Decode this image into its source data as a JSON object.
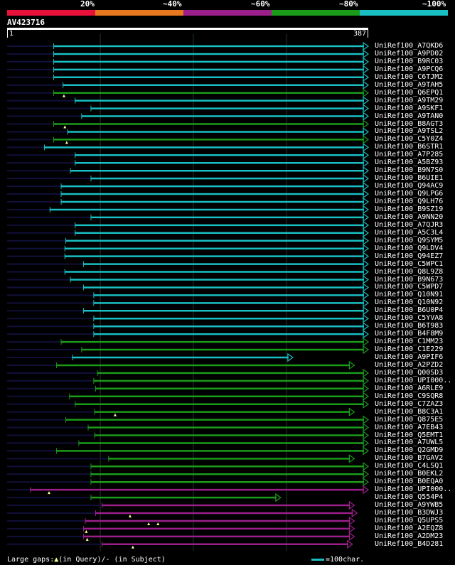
{
  "legend": {
    "segments": [
      {
        "label": "20%",
        "color": "#e8113a"
      },
      {
        "label": "~40%",
        "color": "#e8781e"
      },
      {
        "label": "~60%",
        "color": "#9b1f8a"
      },
      {
        "label": "~80%",
        "color": "#1a9b1a"
      },
      {
        "label": "~100%",
        "color": "#19bfc3"
      }
    ]
  },
  "query": {
    "id": "AV423716",
    "start": "1",
    "end": "387",
    "length": 387
  },
  "colors": {
    "cyan": "#19bfc3",
    "green": "#1a9b1a",
    "purple": "#9b1f8a",
    "tail": "#10103a",
    "grid": "#1f3a1f"
  },
  "hits": [
    {
      "name": "UniRef100_A7QKD6",
      "color": "cyan",
      "qstart": 50,
      "qend": 387,
      "ins": []
    },
    {
      "name": "UniRef100_A9PD02",
      "color": "cyan",
      "qstart": 50,
      "qend": 387,
      "ins": []
    },
    {
      "name": "UniRef100_B9RC03",
      "color": "cyan",
      "qstart": 50,
      "qend": 387,
      "ins": []
    },
    {
      "name": "UniRef100_A9PCQ6",
      "color": "cyan",
      "qstart": 50,
      "qend": 387,
      "ins": []
    },
    {
      "name": "UniRef100_C6TJM2",
      "color": "cyan",
      "qstart": 50,
      "qend": 387,
      "ins": []
    },
    {
      "name": "UniRef100_A9TAH5",
      "color": "cyan",
      "qstart": 60,
      "qend": 387,
      "ins": []
    },
    {
      "name": "UniRef100_Q6EPQ1",
      "color": "green",
      "qstart": 50,
      "qend": 387,
      "ins": [
        61
      ]
    },
    {
      "name": "UniRef100_A9TM29",
      "color": "cyan",
      "qstart": 73,
      "qend": 387,
      "ins": []
    },
    {
      "name": "UniRef100_A9SKF1",
      "color": "cyan",
      "qstart": 90,
      "qend": 387,
      "ins": []
    },
    {
      "name": "UniRef100_A9TAN0",
      "color": "cyan",
      "qstart": 80,
      "qend": 387,
      "ins": []
    },
    {
      "name": "UniRef100_B8AGT3",
      "color": "green",
      "qstart": 50,
      "qend": 387,
      "ins": [
        62
      ]
    },
    {
      "name": "UniRef100_A9TSL2",
      "color": "cyan",
      "qstart": 65,
      "qend": 387,
      "ins": []
    },
    {
      "name": "UniRef100_C5Y0Z4",
      "color": "green",
      "qstart": 50,
      "qend": 387,
      "ins": [
        64
      ]
    },
    {
      "name": "UniRef100_B6STR1",
      "color": "cyan",
      "qstart": 40,
      "qend": 387,
      "ins": []
    },
    {
      "name": "UniRef100_A7P285",
      "color": "cyan",
      "qstart": 73,
      "qend": 387,
      "ins": []
    },
    {
      "name": "UniRef100_A5BZ93",
      "color": "cyan",
      "qstart": 73,
      "qend": 387,
      "ins": []
    },
    {
      "name": "UniRef100_B9N7S0",
      "color": "cyan",
      "qstart": 68,
      "qend": 387,
      "ins": []
    },
    {
      "name": "UniRef100_B6UIE1",
      "color": "cyan",
      "qstart": 90,
      "qend": 387,
      "ins": []
    },
    {
      "name": "UniRef100_Q94AC9",
      "color": "cyan",
      "qstart": 58,
      "qend": 387,
      "ins": []
    },
    {
      "name": "UniRef100_Q9LPG6",
      "color": "cyan",
      "qstart": 58,
      "qend": 387,
      "ins": []
    },
    {
      "name": "UniRef100_Q9LH76",
      "color": "cyan",
      "qstart": 58,
      "qend": 387,
      "ins": []
    },
    {
      "name": "UniRef100_B9SZ19",
      "color": "cyan",
      "qstart": 46,
      "qend": 387,
      "ins": []
    },
    {
      "name": "UniRef100_A9NN20",
      "color": "cyan",
      "qstart": 90,
      "qend": 387,
      "ins": []
    },
    {
      "name": "UniRef100_A7QJR3",
      "color": "cyan",
      "qstart": 73,
      "qend": 387,
      "ins": []
    },
    {
      "name": "UniRef100_A5C3L4",
      "color": "cyan",
      "qstart": 73,
      "qend": 387,
      "ins": []
    },
    {
      "name": "UniRef100_Q9SYM5",
      "color": "cyan",
      "qstart": 63,
      "qend": 387,
      "ins": []
    },
    {
      "name": "UniRef100_Q9LDV4",
      "color": "cyan",
      "qstart": 62,
      "qend": 387,
      "ins": []
    },
    {
      "name": "UniRef100_Q94EZ7",
      "color": "cyan",
      "qstart": 62,
      "qend": 387,
      "ins": []
    },
    {
      "name": "UniRef100_C5WPC1",
      "color": "cyan",
      "qstart": 82,
      "qend": 387,
      "ins": []
    },
    {
      "name": "UniRef100_Q8L9Z8",
      "color": "cyan",
      "qstart": 62,
      "qend": 387,
      "ins": []
    },
    {
      "name": "UniRef100_B9N673",
      "color": "cyan",
      "qstart": 68,
      "qend": 387,
      "ins": []
    },
    {
      "name": "UniRef100_C5WPD7",
      "color": "cyan",
      "qstart": 82,
      "qend": 387,
      "ins": []
    },
    {
      "name": "UniRef100_Q10N91",
      "color": "cyan",
      "qstart": 93,
      "qend": 387,
      "ins": []
    },
    {
      "name": "UniRef100_Q10N92",
      "color": "cyan",
      "qstart": 93,
      "qend": 387,
      "ins": []
    },
    {
      "name": "UniRef100_B6U0P4",
      "color": "cyan",
      "qstart": 82,
      "qend": 387,
      "ins": []
    },
    {
      "name": "UniRef100_C5YVA8",
      "color": "cyan",
      "qstart": 93,
      "qend": 387,
      "ins": []
    },
    {
      "name": "UniRef100_B6T983",
      "color": "cyan",
      "qstart": 93,
      "qend": 387,
      "ins": []
    },
    {
      "name": "UniRef100_B4F8M9",
      "color": "cyan",
      "qstart": 93,
      "qend": 387,
      "ins": []
    },
    {
      "name": "UniRef100_C1MM23",
      "color": "green",
      "qstart": 58,
      "qend": 387,
      "ins": []
    },
    {
      "name": "UniRef100_C1E229",
      "color": "green",
      "qstart": 80,
      "qend": 387,
      "ins": []
    },
    {
      "name": "UniRef100_A9PIF6",
      "color": "cyan",
      "qstart": 70,
      "qend": 306,
      "ins": []
    },
    {
      "name": "UniRef100_A2PZD2",
      "color": "green",
      "qstart": 53,
      "qend": 372,
      "ins": []
    },
    {
      "name": "UniRef100_Q00SD3",
      "color": "green",
      "qstart": 97,
      "qend": 387,
      "ins": []
    },
    {
      "name": "UniRef100_UPI000..",
      "color": "green",
      "qstart": 93,
      "qend": 387,
      "ins": []
    },
    {
      "name": "UniRef100_A6RLE9",
      "color": "green",
      "qstart": 95,
      "qend": 387,
      "ins": []
    },
    {
      "name": "UniRef100_C9SQR8",
      "color": "green",
      "qstart": 67,
      "qend": 387,
      "ins": []
    },
    {
      "name": "UniRef100_C7ZAZ3",
      "color": "green",
      "qstart": 73,
      "qend": 387,
      "ins": []
    },
    {
      "name": "UniRef100_B8C3A1",
      "color": "green",
      "qstart": 94,
      "qend": 372,
      "ins": [
        116
      ]
    },
    {
      "name": "UniRef100_Q875E5",
      "color": "green",
      "qstart": 63,
      "qend": 387,
      "ins": []
    },
    {
      "name": "UniRef100_A7EB43",
      "color": "green",
      "qstart": 87,
      "qend": 387,
      "ins": []
    },
    {
      "name": "UniRef100_Q5EMT1",
      "color": "green",
      "qstart": 94,
      "qend": 387,
      "ins": []
    },
    {
      "name": "UniRef100_A7UWL5",
      "color": "green",
      "qstart": 77,
      "qend": 387,
      "ins": []
    },
    {
      "name": "UniRef100_Q2GMD9",
      "color": "green",
      "qstart": 53,
      "qend": 387,
      "ins": []
    },
    {
      "name": "UniRef100_B7GAV2",
      "color": "green",
      "qstart": 109,
      "qend": 372,
      "ins": []
    },
    {
      "name": "UniRef100_C4LSQ1",
      "color": "green",
      "qstart": 90,
      "qend": 387,
      "ins": []
    },
    {
      "name": "UniRef100_B0EKL2",
      "color": "green",
      "qstart": 90,
      "qend": 387,
      "ins": []
    },
    {
      "name": "UniRef100_B0EQA0",
      "color": "green",
      "qstart": 90,
      "qend": 387,
      "ins": []
    },
    {
      "name": "UniRef100_UPI000..",
      "color": "purple",
      "qstart": 25,
      "qend": 387,
      "ins": [
        45
      ]
    },
    {
      "name": "UniRef100_Q554P4",
      "color": "green",
      "qstart": 90,
      "qend": 293,
      "ins": []
    },
    {
      "name": "UniRef100_A9YWB5",
      "color": "purple",
      "qstart": 102,
      "qend": 372,
      "ins": []
    },
    {
      "name": "UniRef100_B3DWJ3",
      "color": "purple",
      "qstart": 95,
      "qend": 375,
      "ins": [
        132
      ]
    },
    {
      "name": "UniRef100_Q5UPS5",
      "color": "purple",
      "qstart": 84,
      "qend": 372,
      "ins": [
        152,
        162
      ]
    },
    {
      "name": "UniRef100_A2EQZ8",
      "color": "purple",
      "qstart": 82,
      "qend": 372,
      "ins": [
        85
      ]
    },
    {
      "name": "UniRef100_A2DM23",
      "color": "purple",
      "qstart": 82,
      "qend": 372,
      "ins": [
        86
      ]
    },
    {
      "name": "UniRef100_B4D281",
      "color": "purple",
      "qstart": 102,
      "qend": 370,
      "ins": [
        135
      ]
    }
  ],
  "footer": {
    "gaps_prefix": "Large gaps:",
    "gaps_query": "(in Query)",
    "gaps_subject": "/- (in Subject)",
    "scale_label": "=100char."
  }
}
